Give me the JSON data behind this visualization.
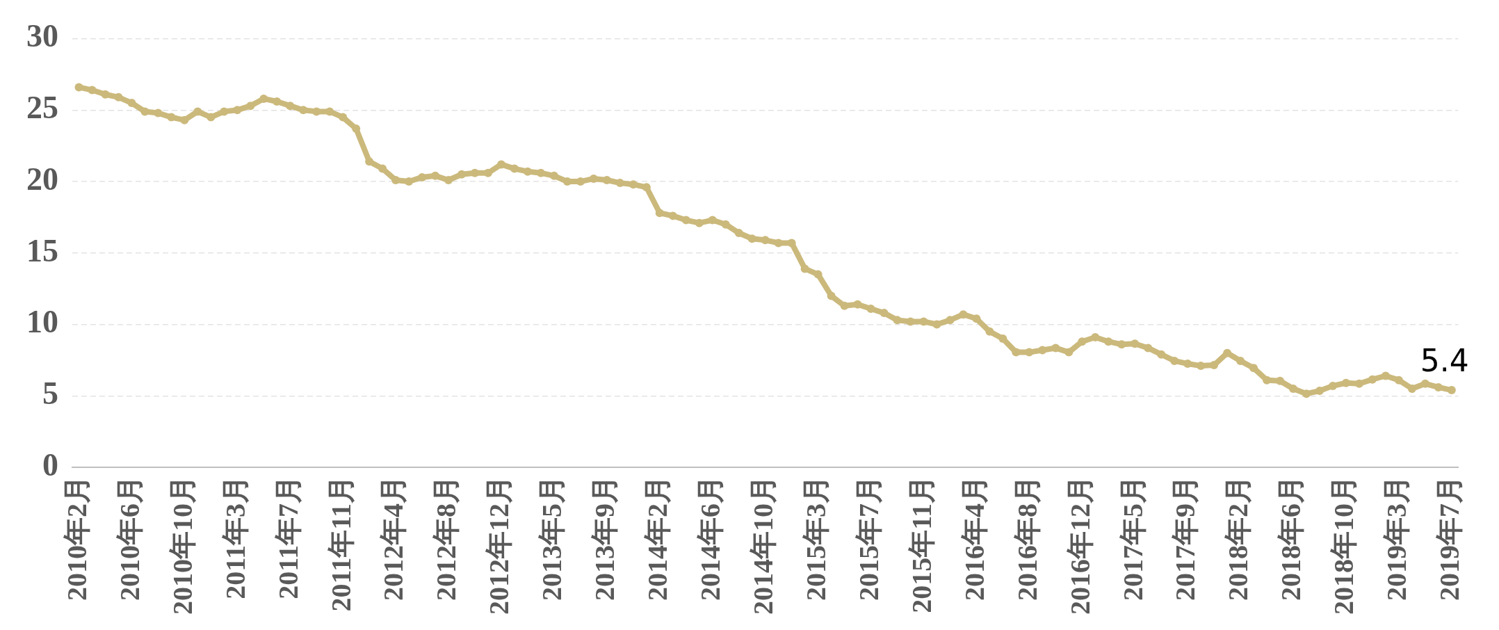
{
  "chart_data": {
    "type": "line",
    "categories": [
      "2010年2月",
      null,
      null,
      null,
      "2010年6月",
      null,
      null,
      null,
      "2010年10月",
      null,
      null,
      null,
      "2011年3月",
      null,
      null,
      null,
      "2011年7月",
      null,
      null,
      null,
      "2011年11月",
      null,
      null,
      null,
      "2012年4月",
      null,
      null,
      null,
      "2012年8月",
      null,
      null,
      null,
      "2012年12月",
      null,
      null,
      null,
      "2013年5月",
      null,
      null,
      null,
      "2013年9月",
      null,
      null,
      null,
      "2014年2月",
      null,
      null,
      null,
      "2014年6月",
      null,
      null,
      null,
      "2014年10月",
      null,
      null,
      null,
      "2015年3月",
      null,
      null,
      null,
      "2015年7月",
      null,
      null,
      null,
      "2015年11月",
      null,
      null,
      null,
      "2016年4月",
      null,
      null,
      null,
      "2016年8月",
      null,
      null,
      null,
      "2016年12月",
      null,
      null,
      null,
      "2017年5月",
      null,
      null,
      null,
      "2017年9月",
      null,
      null,
      null,
      "2018年2月",
      null,
      null,
      null,
      "2018年6月",
      null,
      null,
      null,
      "2018年10月",
      null,
      null,
      null,
      "2019年3月",
      null,
      null,
      null,
      "2019年7月"
    ],
    "series": [
      {
        "color": "#cbb97c",
        "values": [
          26.6,
          26.4,
          26.1,
          25.9,
          25.5,
          24.9,
          24.8,
          24.5,
          24.3,
          24.9,
          24.5,
          24.9,
          25.0,
          25.3,
          25.8,
          25.6,
          25.3,
          25.0,
          24.9,
          24.9,
          24.5,
          23.7,
          21.4,
          20.9,
          20.1,
          20.0,
          20.3,
          20.4,
          20.1,
          20.5,
          20.6,
          20.6,
          21.2,
          20.9,
          20.7,
          20.6,
          20.4,
          20.0,
          20.0,
          20.2,
          20.1,
          19.9,
          19.8,
          19.6,
          17.8,
          17.6,
          17.3,
          17.1,
          17.3,
          17.0,
          16.4,
          16.0,
          15.9,
          15.7,
          15.7,
          13.9,
          13.5,
          12.0,
          11.3,
          11.4,
          11.1,
          10.8,
          10.3,
          10.2,
          10.2,
          10.0,
          10.3,
          10.7,
          10.4,
          9.5,
          9.0,
          8.05,
          8.05,
          8.2,
          8.35,
          8.05,
          8.8,
          9.1,
          8.8,
          8.6,
          8.65,
          8.35,
          7.9,
          7.45,
          7.25,
          7.1,
          7.15,
          8.0,
          7.45,
          6.95,
          6.1,
          6.05,
          5.5,
          5.15,
          5.35,
          5.7,
          5.9,
          5.85,
          6.15,
          6.4,
          6.1,
          5.5,
          5.85,
          5.6,
          5.4
        ],
        "value_labels": [
          null,
          null,
          null,
          null,
          null,
          null,
          null,
          null,
          null,
          null,
          null,
          null,
          null,
          null,
          null,
          null,
          null,
          null,
          null,
          null,
          null,
          null,
          null,
          null,
          null,
          null,
          null,
          null,
          null,
          null,
          null,
          null,
          null,
          null,
          null,
          null,
          null,
          null,
          null,
          null,
          null,
          null,
          null,
          null,
          null,
          null,
          null,
          null,
          null,
          null,
          null,
          null,
          null,
          null,
          null,
          null,
          null,
          null,
          null,
          null,
          null,
          null,
          null,
          null,
          null,
          null,
          null,
          null,
          null,
          null,
          null,
          null,
          null,
          null,
          null,
          null,
          null,
          null,
          null,
          null,
          null,
          null,
          null,
          null,
          null,
          null,
          null,
          null,
          null,
          null,
          null,
          null,
          null,
          null,
          null,
          null,
          null,
          null,
          null,
          null,
          null,
          null,
          null,
          null,
          "5.4"
        ]
      }
    ],
    "ylim": [
      0,
      30
    ],
    "yticks": [
      0,
      5,
      10,
      15,
      20,
      25,
      30
    ],
    "grid": "y",
    "legend": false,
    "marker": "circle",
    "line_style": "solid"
  }
}
